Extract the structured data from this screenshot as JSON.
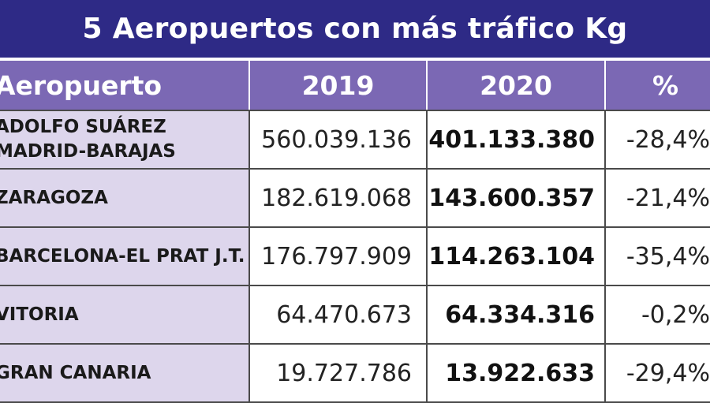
{
  "title": "5 Aeropuertos con más tráfico Kg",
  "colors": {
    "title_bg": "#2e2a86",
    "header_bg": "#7b68b4",
    "airport_bg": "#ddd6ec"
  },
  "header": {
    "col_airport": "Aeropuerto",
    "col_2019": "2019",
    "col_2020": "2020",
    "col_pct": "%"
  },
  "rows": [
    {
      "airport_line1": "ADOLFO SUÁREZ",
      "airport_line2": "MADRID-BARAJAS",
      "v2019": "560.039.136",
      "v2020": "401.133.380",
      "pct": "-28,4%"
    },
    {
      "airport_line1": "ZARAGOZA",
      "airport_line2": "",
      "v2019": "182.619.068",
      "v2020": "143.600.357",
      "pct": "-21,4%"
    },
    {
      "airport_line1": "BARCELONA-EL PRAT J.T.",
      "airport_line2": "",
      "v2019": "176.797.909",
      "v2020": "114.263.104",
      "pct": "-35,4%"
    },
    {
      "airport_line1": "VITORIA",
      "airport_line2": "",
      "v2019": "64.470.673",
      "v2020": "64.334.316",
      "pct": "-0,2%"
    },
    {
      "airport_line1": "GRAN CANARIA",
      "airport_line2": "",
      "v2019": "19.727.786",
      "v2020": "13.922.633",
      "pct": "-29,4%"
    }
  ]
}
